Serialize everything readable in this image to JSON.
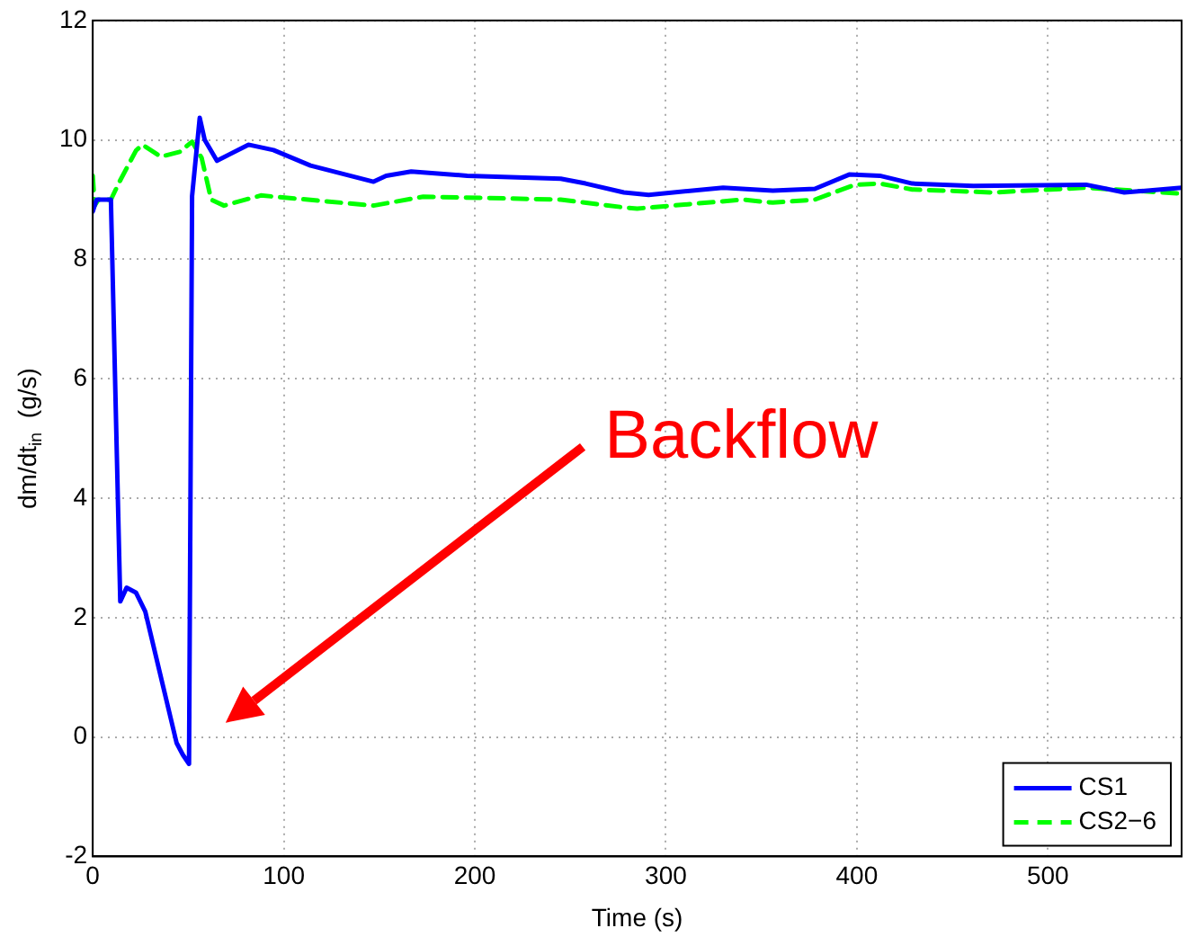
{
  "chart_data": {
    "type": "line",
    "xlabel": "Time (s)",
    "ylabel": "dm/dt$_{in}$  (g/s)",
    "xlim": [
      0,
      570
    ],
    "xticks": [
      0,
      100,
      200,
      300,
      400,
      500
    ],
    "ylim": [
      -2,
      12
    ],
    "yticks": [
      -2,
      0,
      2,
      4,
      6,
      8,
      10,
      12
    ],
    "grid": true,
    "legend": "bottom right",
    "marker": "none",
    "annotations": [
      "Backflow"
    ],
    "series": [
      {
        "name": "CS1",
        "color": "#0000ff",
        "line_style": "solid",
        "x": [
          0,
          2,
          9.5,
          14.4,
          17.7,
          22.6,
          27.5,
          43.9,
          47.2,
          50.4,
          52,
          56,
          58.6,
          65,
          81.5,
          94.6,
          114,
          147,
          153.6,
          166.7,
          196,
          245,
          258,
          278,
          291,
          330,
          356,
          378,
          396,
          412,
          429,
          461,
          520,
          540,
          570
        ],
        "values": [
          8.8,
          9.0,
          9.0,
          2.27,
          2.5,
          2.42,
          2.1,
          -0.1,
          -0.3,
          -0.45,
          9.06,
          10.37,
          10.0,
          9.65,
          9.92,
          9.83,
          9.57,
          9.3,
          9.4,
          9.47,
          9.4,
          9.35,
          9.27,
          9.12,
          9.08,
          9.2,
          9.15,
          9.18,
          9.42,
          9.4,
          9.27,
          9.23,
          9.25,
          9.12,
          9.2
        ]
      },
      {
        "name": "CS2−6",
        "color": "#00ff00",
        "line_style": "dashed",
        "x": [
          0,
          1,
          3,
          9.5,
          14,
          22.6,
          25.9,
          35.7,
          45.5,
          52,
          57,
          62,
          68.7,
          88,
          147,
          173,
          245,
          278,
          285,
          340,
          356,
          378,
          399,
          412,
          429,
          471,
          520,
          570
        ],
        "values": [
          9.4,
          8.9,
          9.0,
          9.0,
          9.3,
          9.82,
          9.92,
          9.72,
          9.8,
          9.97,
          9.7,
          9.0,
          8.9,
          9.07,
          8.9,
          9.05,
          9.0,
          8.87,
          8.85,
          9.0,
          8.95,
          9.0,
          9.25,
          9.27,
          9.17,
          9.12,
          9.2,
          9.1
        ]
      }
    ]
  }
}
